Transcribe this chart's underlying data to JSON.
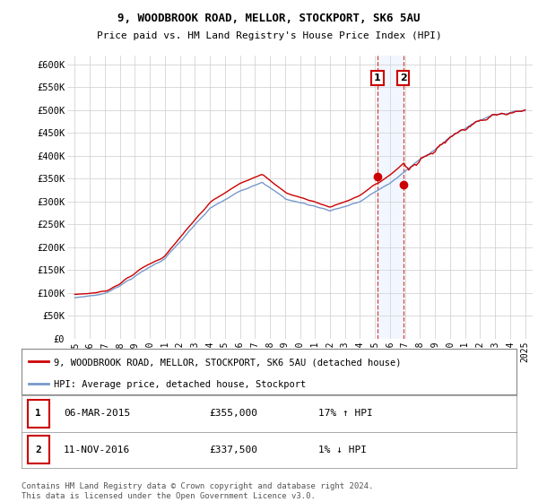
{
  "title1": "9, WOODBROOK ROAD, MELLOR, STOCKPORT, SK6 5AU",
  "title2": "Price paid vs. HM Land Registry's House Price Index (HPI)",
  "ylabel_ticks": [
    "£0",
    "£50K",
    "£100K",
    "£150K",
    "£200K",
    "£250K",
    "£300K",
    "£350K",
    "£400K",
    "£450K",
    "£500K",
    "£550K",
    "£600K"
  ],
  "ytick_values": [
    0,
    50000,
    100000,
    150000,
    200000,
    250000,
    300000,
    350000,
    400000,
    450000,
    500000,
    550000,
    600000
  ],
  "xtick_years": [
    "1995",
    "1996",
    "1997",
    "1998",
    "1999",
    "2000",
    "2001",
    "2002",
    "2003",
    "2004",
    "2005",
    "2006",
    "2007",
    "2008",
    "2009",
    "2010",
    "2011",
    "2012",
    "2013",
    "2014",
    "2015",
    "2016",
    "2017",
    "2018",
    "2019",
    "2020",
    "2021",
    "2022",
    "2023",
    "2024",
    "2025"
  ],
  "red_line_color": "#cc0000",
  "blue_line_color": "#7799cc",
  "vline_color": "#cc2222",
  "span_color": "#cce0ff",
  "marker_color": "#cc0000",
  "transaction1": {
    "date_num": 2015.17,
    "value": 355000,
    "label": "1"
  },
  "transaction2": {
    "date_num": 2016.87,
    "value": 337500,
    "label": "2"
  },
  "legend_label_red": "9, WOODBROOK ROAD, MELLOR, STOCKPORT, SK6 5AU (detached house)",
  "legend_label_blue": "HPI: Average price, detached house, Stockport",
  "table_row1": [
    "1",
    "06-MAR-2015",
    "£355,000",
    "17% ↑ HPI"
  ],
  "table_row2": [
    "2",
    "11-NOV-2016",
    "£337,500",
    "1% ↓ HPI"
  ],
  "footer": "Contains HM Land Registry data © Crown copyright and database right 2024.\nThis data is licensed under the Open Government Licence v3.0.",
  "background_color": "#ffffff",
  "grid_color": "#cccccc"
}
